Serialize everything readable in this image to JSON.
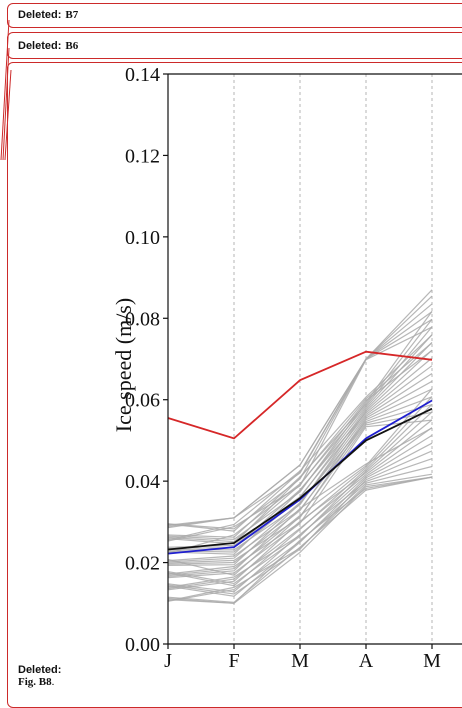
{
  "balloons": [
    {
      "label": "Deleted:",
      "text": "B7"
    },
    {
      "label": "Deleted:",
      "text": "B6"
    },
    {
      "label": "Deleted:",
      "text": "Fig. B8",
      "suffix": "."
    }
  ],
  "chart_data": {
    "type": "line",
    "ylabel": "Ice speed (m/s)",
    "categories": [
      "J",
      "F",
      "M",
      "A",
      "M"
    ],
    "ylim": [
      0.0,
      0.14
    ],
    "y_ticks": [
      "0.00",
      "0.02",
      "0.04",
      "0.06",
      "0.08",
      "0.10",
      "0.12",
      "0.14"
    ],
    "grid": "vertical dashed",
    "series": [
      {
        "color": "#d62728",
        "values": [
          0.0555,
          0.0505,
          0.0648,
          0.0718,
          0.0698
        ]
      },
      {
        "color": "#1f1fd0",
        "values": [
          0.0222,
          0.0238,
          0.0355,
          0.0505,
          0.0598
        ]
      },
      {
        "color": "#111111",
        "values": [
          0.0232,
          0.0248,
          0.0358,
          0.05,
          0.0578
        ]
      }
    ],
    "ensemble": {
      "color": "#aaaaaa",
      "min": [
        0.0105,
        0.01,
        0.0225,
        0.035,
        0.041
      ],
      "max": [
        0.0295,
        0.031,
        0.044,
        0.07,
        0.087
      ]
    }
  }
}
